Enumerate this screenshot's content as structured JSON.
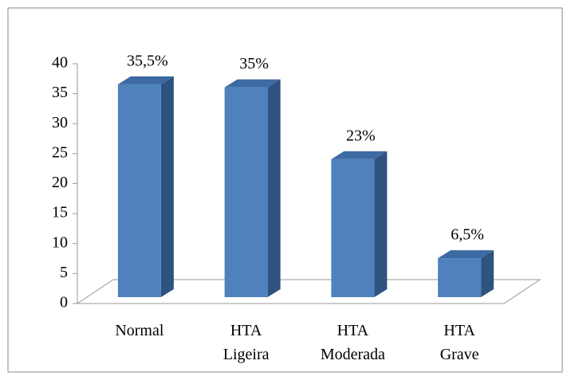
{
  "chart_data": {
    "type": "bar",
    "categories": [
      "Normal",
      "HTA Ligeira",
      "HTA Moderada",
      "HTA Grave"
    ],
    "values": [
      35.5,
      35,
      23,
      6.5
    ],
    "value_labels": [
      "35,5%",
      "35%",
      "23%",
      "6,5%"
    ],
    "color": "#4f81bd",
    "ylim": [
      0,
      40
    ],
    "yticks": [
      0,
      5,
      10,
      15,
      20,
      25,
      30,
      35,
      40
    ]
  }
}
